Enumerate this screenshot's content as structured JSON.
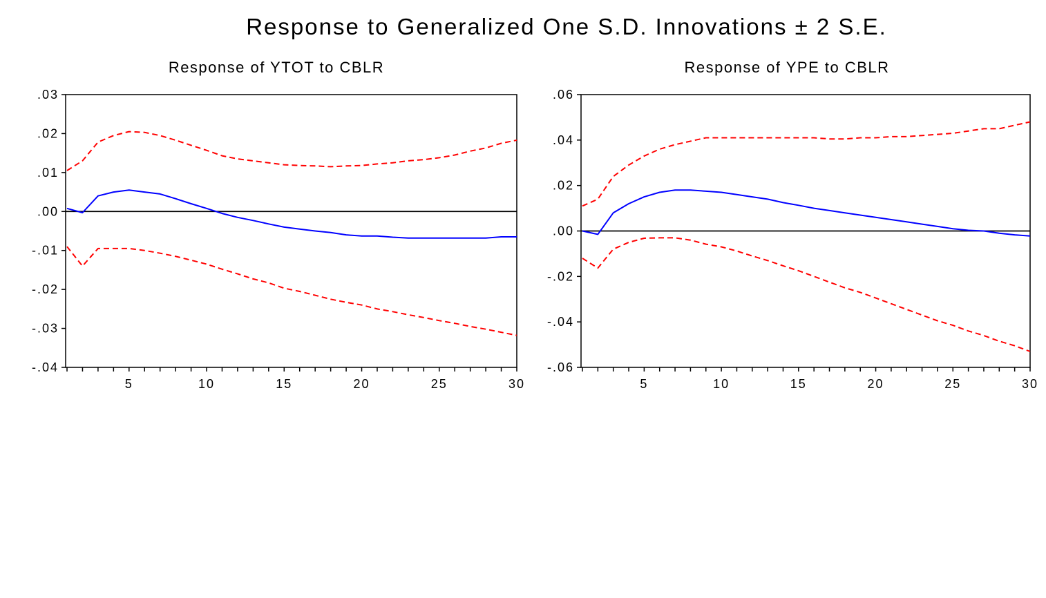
{
  "chart_data": {
    "type": "line",
    "title": "Response to Generalized One S.D. Innovations ± 2 S.E.",
    "colors": {
      "response": "#0000ff",
      "band": "#ff0000",
      "zero": "#000000"
    },
    "panels": [
      {
        "subtitle": "Response of YTOT to CBLR",
        "xlim": [
          1,
          30
        ],
        "ylim": [
          -0.04,
          0.03
        ],
        "yticks": [
          0.03,
          0.02,
          0.01,
          0.0,
          -0.01,
          -0.02,
          -0.03,
          -0.04
        ],
        "ytick_labels": [
          ".03",
          ".02",
          ".01",
          ".00",
          "-.01",
          "-.02",
          "-.03",
          "-.04"
        ],
        "xticks": [
          5,
          10,
          15,
          20,
          25,
          30
        ],
        "xtick_labels": [
          "5",
          "10",
          "15",
          "20",
          "25",
          "30"
        ],
        "series": [
          {
            "name": "response",
            "style": "solid",
            "values": [
              0.0008,
              -0.0003,
              0.004,
              0.005,
              0.0055,
              0.005,
              0.0045,
              0.0033,
              0.002,
              0.0008,
              -0.0005,
              -0.0015,
              -0.0023,
              -0.0032,
              -0.004,
              -0.0045,
              -0.005,
              -0.0054,
              -0.006,
              -0.0063,
              -0.0063,
              -0.0066,
              -0.0068,
              -0.0068,
              -0.0068,
              -0.0068,
              -0.0068,
              -0.0068,
              -0.0065,
              -0.0065
            ]
          },
          {
            "name": "upper",
            "style": "dashed",
            "values": [
              0.0105,
              0.013,
              0.0178,
              0.0195,
              0.0205,
              0.0203,
              0.0195,
              0.0183,
              0.017,
              0.0157,
              0.0143,
              0.0135,
              0.013,
              0.0125,
              0.012,
              0.0118,
              0.0117,
              0.0115,
              0.0117,
              0.0118,
              0.0122,
              0.0125,
              0.013,
              0.0133,
              0.0138,
              0.0145,
              0.0155,
              0.0163,
              0.0175,
              0.0183
            ]
          },
          {
            "name": "lower",
            "style": "dashed",
            "values": [
              -0.009,
              -0.014,
              -0.0095,
              -0.0095,
              -0.0095,
              -0.01,
              -0.0107,
              -0.0115,
              -0.0125,
              -0.0135,
              -0.0148,
              -0.016,
              -0.0173,
              -0.0183,
              -0.0197,
              -0.0205,
              -0.0215,
              -0.0225,
              -0.0233,
              -0.024,
              -0.025,
              -0.0257,
              -0.0265,
              -0.0272,
              -0.028,
              -0.0287,
              -0.0295,
              -0.0302,
              -0.031,
              -0.0318
            ]
          }
        ]
      },
      {
        "subtitle": "Response of YPE to CBLR",
        "xlim": [
          1,
          30
        ],
        "ylim": [
          -0.06,
          0.06
        ],
        "yticks": [
          0.06,
          0.04,
          0.02,
          0.0,
          -0.02,
          -0.04,
          -0.06
        ],
        "ytick_labels": [
          ".06",
          ".04",
          ".02",
          ".00",
          "-.02",
          "-.04",
          "-.06"
        ],
        "xticks": [
          5,
          10,
          15,
          20,
          25,
          30
        ],
        "xtick_labels": [
          "5",
          "10",
          "15",
          "20",
          "25",
          "30"
        ],
        "series": [
          {
            "name": "response",
            "style": "solid",
            "values": [
              0,
              -0.0015,
              0.008,
              0.012,
              0.015,
              0.017,
              0.018,
              0.018,
              0.0175,
              0.017,
              0.016,
              0.015,
              0.014,
              0.0125,
              0.0113,
              0.01,
              0.009,
              0.008,
              0.007,
              0.006,
              0.005,
              0.004,
              0.003,
              0.002,
              0.001,
              0.0003,
              0,
              -0.001,
              -0.0017,
              -0.0022
            ]
          },
          {
            "name": "upper",
            "style": "dashed",
            "values": [
              0.011,
              0.014,
              0.024,
              0.029,
              0.033,
              0.036,
              0.038,
              0.0395,
              0.041,
              0.041,
              0.041,
              0.041,
              0.041,
              0.041,
              0.041,
              0.041,
              0.0405,
              0.0405,
              0.041,
              0.041,
              0.0415,
              0.0415,
              0.042,
              0.0425,
              0.043,
              0.044,
              0.045,
              0.045,
              0.0465,
              0.048
            ]
          },
          {
            "name": "lower",
            "style": "dashed",
            "values": [
              -0.012,
              -0.0163,
              -0.008,
              -0.005,
              -0.0032,
              -0.003,
              -0.003,
              -0.004,
              -0.0058,
              -0.007,
              -0.0088,
              -0.011,
              -0.013,
              -0.0153,
              -0.0175,
              -0.02,
              -0.0225,
              -0.025,
              -0.027,
              -0.0295,
              -0.032,
              -0.0345,
              -0.037,
              -0.0395,
              -0.0415,
              -0.044,
              -0.046,
              -0.0485,
              -0.0505,
              -0.053
            ]
          }
        ]
      }
    ]
  }
}
